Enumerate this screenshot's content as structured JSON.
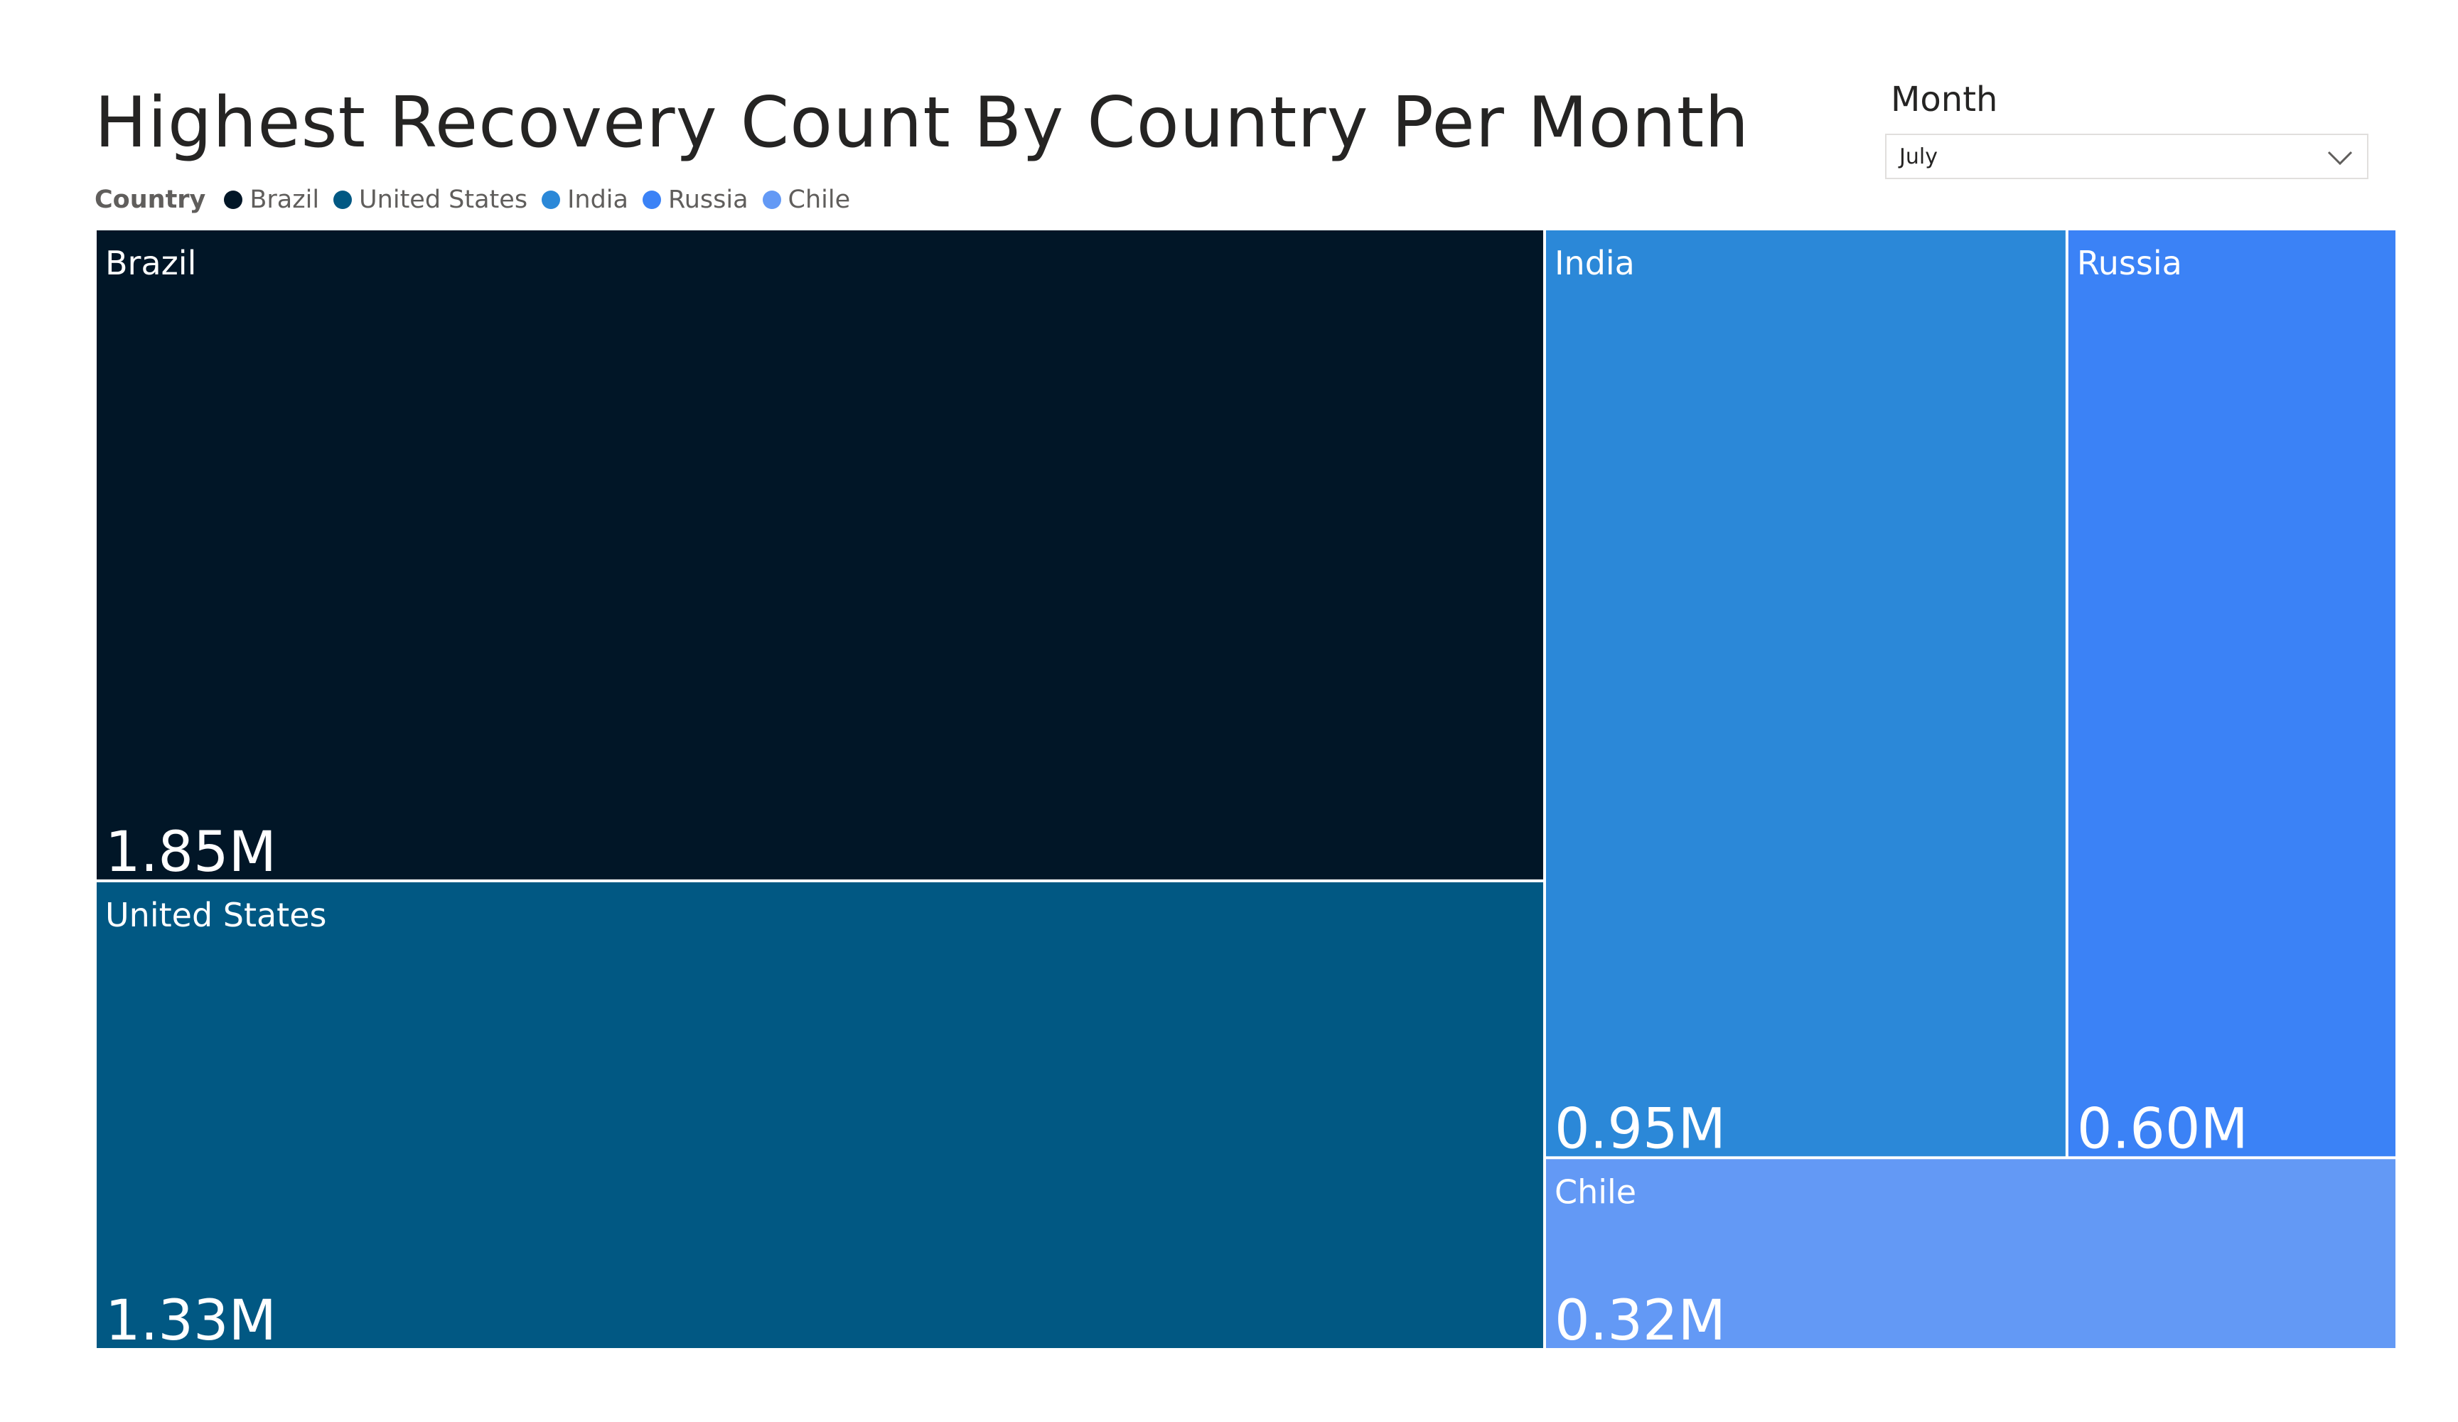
{
  "chart_data": {
    "type": "treemap",
    "title": "Highest Recovery Count By Country Per Month",
    "legend_title": "Country",
    "legend_position": "top-left",
    "unit_suffix": "M",
    "items": [
      {
        "name": "Brazil",
        "value": 1.85,
        "label": "1.85M",
        "color": "#011627"
      },
      {
        "name": "United States",
        "value": 1.33,
        "label": "1.33M",
        "color": "#015883"
      },
      {
        "name": "India",
        "value": 0.95,
        "label": "0.95M",
        "color": "#2b88d8"
      },
      {
        "name": "Russia",
        "value": 0.6,
        "label": "0.60M",
        "color": "#3b82f6"
      },
      {
        "name": "Chile",
        "value": 0.32,
        "label": "0.32M",
        "color": "#6399f5"
      }
    ]
  },
  "slicer": {
    "label": "Month",
    "selected": "July",
    "icon": "chevron-down-icon"
  }
}
